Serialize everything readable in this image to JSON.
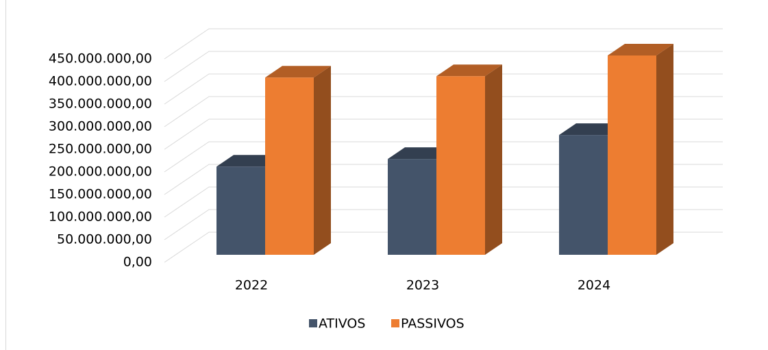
{
  "chart_data": {
    "type": "bar3d",
    "categories": [
      "2022",
      "2023",
      "2024"
    ],
    "series": [
      {
        "name": "ATIVOS",
        "color": "#44546a",
        "values": [
          195000000,
          212000000,
          265000000
        ]
      },
      {
        "name": "PASSIVOS",
        "color": "#ed7d31",
        "values": [
          392000000,
          395000000,
          441000000
        ]
      }
    ],
    "ylim": [
      0,
      450000000
    ],
    "yticks": [
      {
        "value": 0,
        "label": "0,00"
      },
      {
        "value": 50000000,
        "label": "50.000.000,00"
      },
      {
        "value": 100000000,
        "label": "100.000.000,00"
      },
      {
        "value": 150000000,
        "label": "150.000.000,00"
      },
      {
        "value": 200000000,
        "label": "200.000.000,00"
      },
      {
        "value": 250000000,
        "label": "250.000.000,00"
      },
      {
        "value": 300000000,
        "label": "300.000.000,00"
      },
      {
        "value": 350000000,
        "label": "350.000.000,00"
      },
      {
        "value": 400000000,
        "label": "400.000.000,00"
      },
      {
        "value": 450000000,
        "label": "450.000.000,00"
      }
    ],
    "grid": true,
    "legend": "bottom"
  }
}
